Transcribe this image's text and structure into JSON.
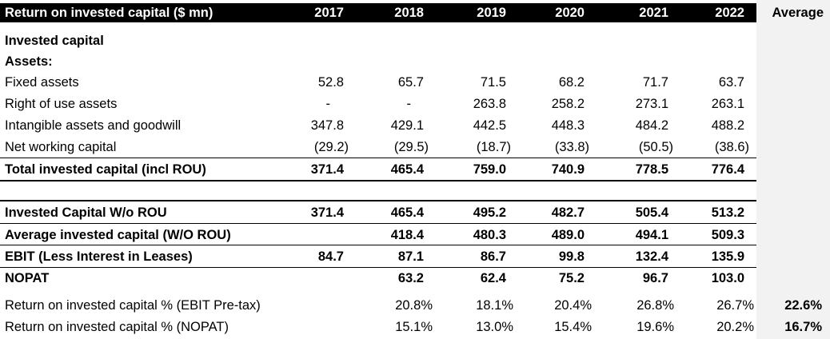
{
  "table": {
    "header": {
      "title": "Return on invested capital ($ mn)",
      "years": [
        "2017",
        "2018",
        "2019",
        "2020",
        "2021",
        "2022"
      ],
      "average": "Average"
    },
    "section_title": "Invested capital",
    "subsection_title": "Assets:",
    "rows": [
      {
        "label": "Fixed assets",
        "values": [
          "52.8",
          "65.7",
          "71.5",
          "68.2",
          "71.7",
          "63.7"
        ],
        "average": ""
      },
      {
        "label": "Right of use assets",
        "values": [
          "-",
          "-",
          "263.8",
          "258.2",
          "273.1",
          "263.1"
        ],
        "average": ""
      },
      {
        "label": "Intangible assets and goodwill",
        "values": [
          "347.8",
          "429.1",
          "442.5",
          "448.3",
          "484.2",
          "488.2"
        ],
        "average": ""
      },
      {
        "label": "Net working capital",
        "values": [
          "(29.2)",
          "(29.5)",
          "(18.7)",
          "(33.8)",
          "(50.5)",
          "(38.6)"
        ],
        "average": ""
      },
      {
        "label": "Total invested capital (incl ROU)",
        "values": [
          "371.4",
          "465.4",
          "759.0",
          "740.9",
          "778.5",
          "776.4"
        ],
        "average": ""
      },
      {
        "label": "Invested Capital W/o ROU",
        "values": [
          "371.4",
          "465.4",
          "495.2",
          "482.7",
          "505.4",
          "513.2"
        ],
        "average": ""
      },
      {
        "label": "Average invested capital (W/O ROU)",
        "values": [
          "",
          "418.4",
          "480.3",
          "489.0",
          "494.1",
          "509.3"
        ],
        "average": ""
      },
      {
        "label": "EBIT (Less Interest in Leases)",
        "values": [
          "84.7",
          "87.1",
          "86.7",
          "99.8",
          "132.4",
          "135.9"
        ],
        "average": ""
      },
      {
        "label": "NOPAT",
        "values": [
          "",
          "63.2",
          "62.4",
          "75.2",
          "96.7",
          "103.0"
        ],
        "average": ""
      },
      {
        "label": "Return on invested capital % (EBIT Pre-tax)",
        "values": [
          "",
          "20.8%",
          "18.1%",
          "20.4%",
          "26.8%",
          "26.7%"
        ],
        "average": "22.6%"
      },
      {
        "label": "Return on invested capital % (NOPAT)",
        "values": [
          "",
          "15.1%",
          "13.0%",
          "15.4%",
          "19.6%",
          "20.2%"
        ],
        "average": "16.7%"
      }
    ]
  }
}
